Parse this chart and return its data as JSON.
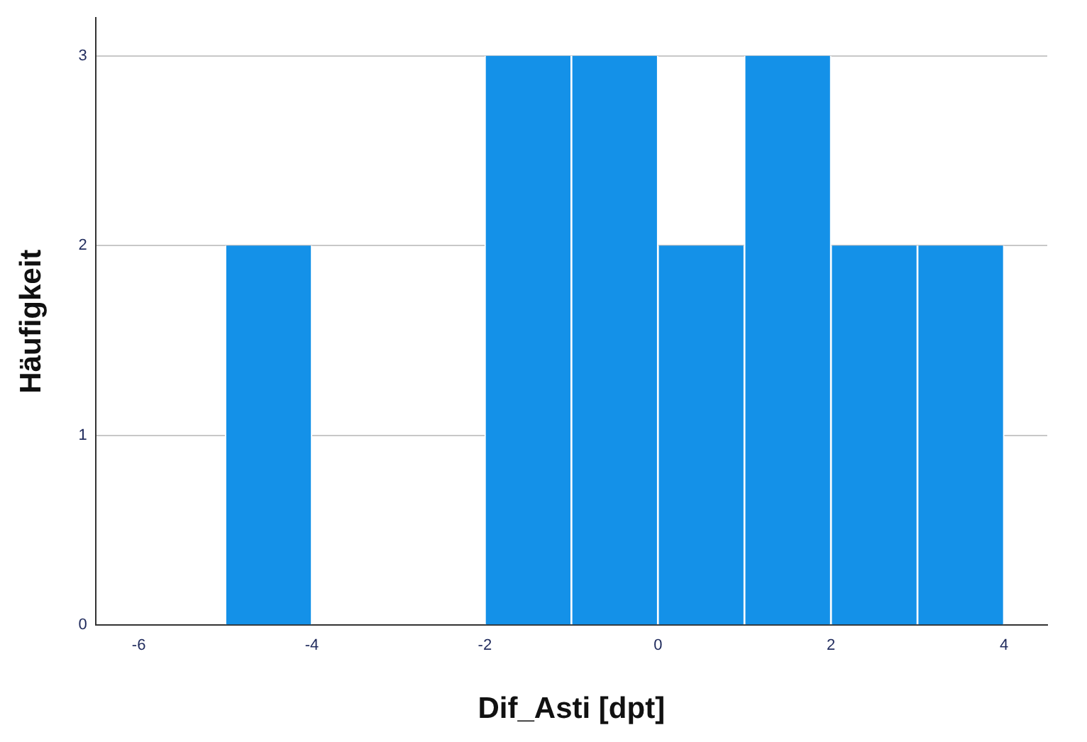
{
  "chart_data": {
    "type": "histogram",
    "xlabel": "Dif_Asti [dpt]",
    "ylabel": "Häufigkeit",
    "bins": [
      -5,
      -4,
      -3,
      -2,
      -1,
      0,
      1,
      2,
      3,
      4
    ],
    "values": [
      2,
      0,
      0,
      3,
      3,
      2,
      3,
      2,
      2
    ],
    "color": "#1491e8",
    "xlim": [
      -6.5,
      4.5
    ],
    "xticks": [
      -6,
      -4,
      -2,
      0,
      2,
      4
    ],
    "ylim": [
      0,
      3.2
    ],
    "yticks": [
      0,
      1,
      2,
      3
    ],
    "grid": "y",
    "legend": false
  }
}
